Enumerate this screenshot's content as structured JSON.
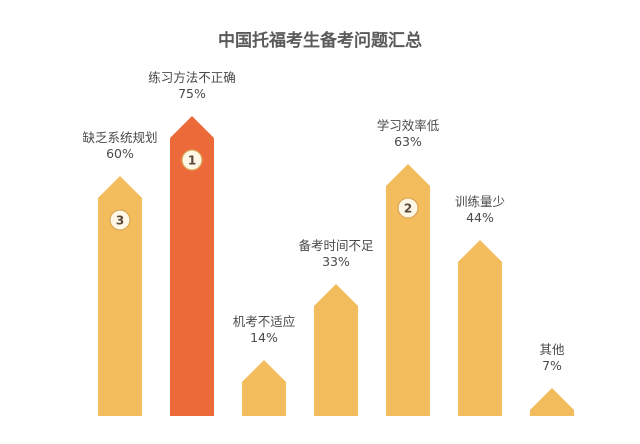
{
  "chart_data": {
    "type": "bar",
    "title": "中国托福考生备考问题汇总",
    "categories": [
      "缺乏系统规划",
      "练习方法不正确",
      "机考不适应",
      "备考时间不足",
      "学习效率低",
      "训练量少",
      "其他"
    ],
    "values": [
      60,
      75,
      14,
      33,
      63,
      44,
      7
    ],
    "value_labels": [
      "60%",
      "75%",
      "14%",
      "33%",
      "63%",
      "44%",
      "7%"
    ],
    "ranks": [
      "3",
      "1",
      "",
      "",
      "2",
      "",
      ""
    ],
    "highlight_index": 1,
    "ylim": [
      0,
      100
    ],
    "grid": false,
    "colors": {
      "bar": "#F3BC5C",
      "highlight": "#EC6A3A",
      "badge": "#FFF6E6",
      "badge_border": "#D8A857",
      "text": "#4a4a4a"
    }
  }
}
